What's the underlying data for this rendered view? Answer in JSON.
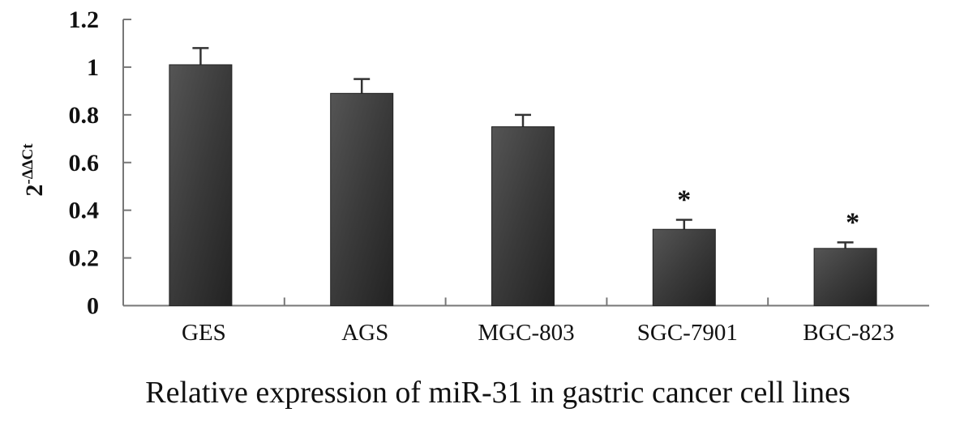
{
  "chart_data": {
    "type": "bar",
    "title": "Relative expression of miR-31 in gastric cancer cell lines",
    "ylabel_base": "2",
    "ylabel_sup": "-ΔΔCt",
    "xlabel": "",
    "categories": [
      "GES",
      "AGS",
      "MGC-803",
      "SGC-7901",
      "BGC-823"
    ],
    "values": [
      1.01,
      0.89,
      0.75,
      0.32,
      0.24
    ],
    "error": [
      0.07,
      0.06,
      0.05,
      0.04,
      0.025
    ],
    "annotations": [
      "",
      "",
      "",
      "*",
      "*"
    ],
    "ylim": [
      0,
      1.2
    ],
    "yticks": [
      "0",
      "0.2",
      "0.4",
      "0.6",
      "0.8",
      "1",
      "1.2"
    ],
    "grid": false,
    "bar_color": "#333333"
  }
}
